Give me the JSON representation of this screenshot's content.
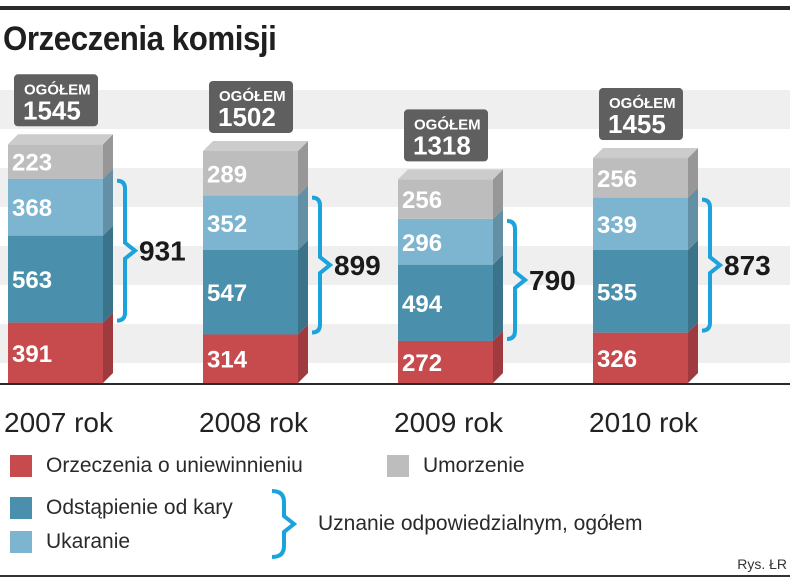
{
  "title": "Orzeczenia komisji",
  "credit": "Rys. ŁR",
  "chart_data": {
    "type": "stacked-bar",
    "categories": [
      "2007 rok",
      "2008 rok",
      "2009 rok",
      "2010 rok"
    ],
    "series": [
      {
        "name": "Orzeczenia o uniewinnieniu",
        "values": [
          391,
          314,
          272,
          326
        ],
        "color": "#c74a4d"
      },
      {
        "name": "Odstąpienie od kary",
        "values": [
          563,
          547,
          494,
          535
        ],
        "color": "#4a90ad"
      },
      {
        "name": "Ukaranie",
        "values": [
          368,
          352,
          296,
          339
        ],
        "color": "#7db4cf"
      },
      {
        "name": "Umorzenie",
        "values": [
          223,
          289,
          256,
          256
        ],
        "color": "#bdbdbd"
      }
    ],
    "total_label": "OGÓŁEM",
    "totals": [
      1545,
      1502,
      1318,
      1455
    ],
    "bracket_totals": [
      931,
      899,
      790,
      873
    ],
    "bracket_label": "Uznanie odpowiedzialnym, ogółem",
    "grid": true
  },
  "legend": {
    "acquittal": "Orzeczenia o uniewinnieniu",
    "discontinuance": "Umorzenie",
    "waiver": "Odstąpienie od kary",
    "punishment": "Ukaranie",
    "bracket": "Uznanie odpowiedzialnym, ogółem"
  },
  "colors": {
    "acquittal": "#c74a4d",
    "waiver": "#4a90ad",
    "punishment": "#7db4cf",
    "discontinuance": "#bdbdbd",
    "accent": "#1ca3dc",
    "badge": "#5f5f5f"
  }
}
